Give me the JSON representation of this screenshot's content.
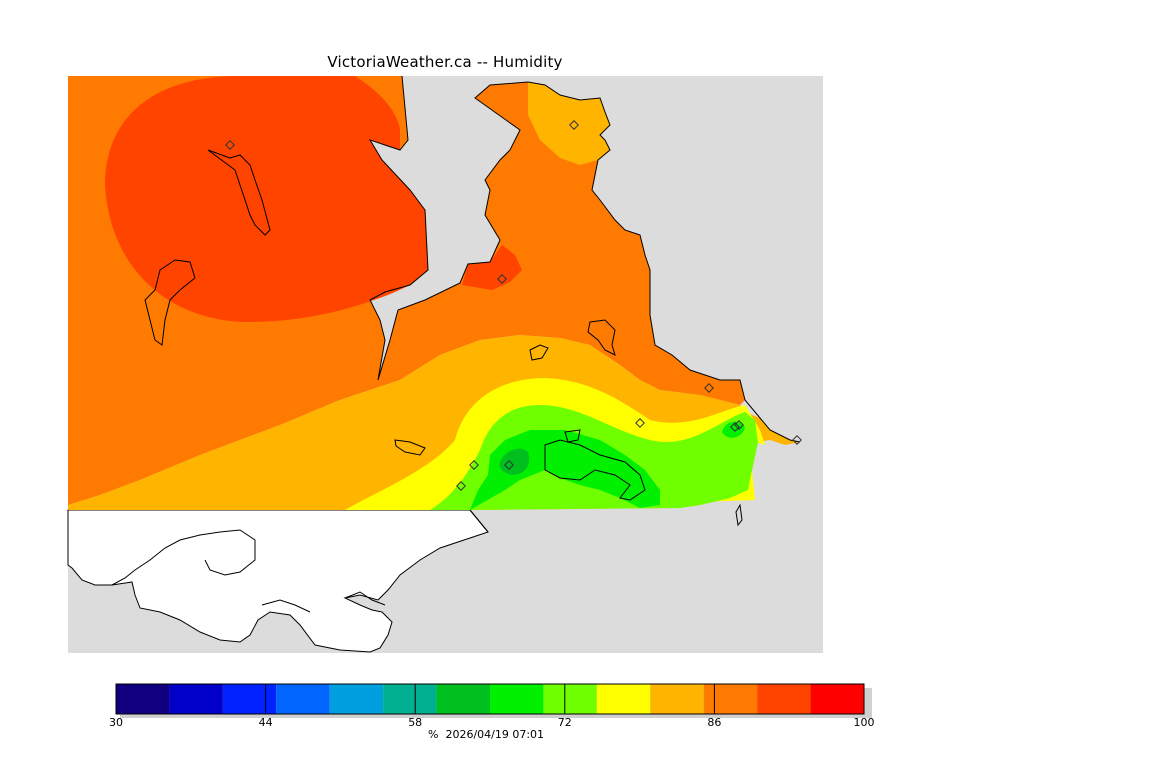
{
  "title": "VictoriaWeather.ca -- Humidity",
  "legend": {
    "min": 30,
    "max": 100,
    "tick_labels": [
      "30",
      "44",
      "58",
      "72",
      "86",
      "100"
    ],
    "tick_values": [
      30,
      44,
      58,
      72,
      86,
      100
    ],
    "bins": [
      {
        "from": 30,
        "to": 35,
        "color": "#10007f"
      },
      {
        "from": 35,
        "to": 40,
        "color": "#0000c8"
      },
      {
        "from": 40,
        "to": 45,
        "color": "#0022ff"
      },
      {
        "from": 45,
        "to": 50,
        "color": "#0066ff"
      },
      {
        "from": 50,
        "to": 55,
        "color": "#00a0e0"
      },
      {
        "from": 55,
        "to": 60,
        "color": "#00b090"
      },
      {
        "from": 60,
        "to": 65,
        "color": "#00c020"
      },
      {
        "from": 65,
        "to": 70,
        "color": "#00f000"
      },
      {
        "from": 70,
        "to": 75,
        "color": "#70ff00"
      },
      {
        "from": 75,
        "to": 80,
        "color": "#ffff00"
      },
      {
        "from": 80,
        "to": 85,
        "color": "#ffb400"
      },
      {
        "from": 85,
        "to": 90,
        "color": "#ff7a00"
      },
      {
        "from": 90,
        "to": 95,
        "color": "#ff4400"
      },
      {
        "from": 95,
        "to": 100,
        "color": "#ff0000"
      }
    ]
  },
  "caption": "%  2026/04/19 07:01",
  "colors": {
    "land_gray": "#dcdcdc",
    "outside_white": "#ffffff",
    "coast": "#000000"
  }
}
